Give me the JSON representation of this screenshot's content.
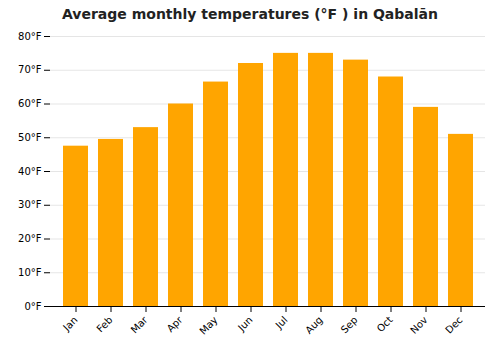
{
  "chart_data": {
    "type": "bar",
    "title": "Average monthly temperatures (°F ) in Qabalān",
    "categories": [
      "Jan",
      "Feb",
      "Mar",
      "Apr",
      "May",
      "Jun",
      "Jul",
      "Aug",
      "Sep",
      "Oct",
      "Nov",
      "Dec"
    ],
    "values": [
      47.5,
      49.5,
      53.0,
      60.0,
      66.5,
      72.0,
      75.0,
      75.0,
      73.0,
      68.0,
      59.0,
      51.0
    ],
    "color": "#FFA500",
    "ylim": [
      0,
      80
    ],
    "yticks": [
      {
        "value": 0,
        "label": "0°F"
      },
      {
        "value": 10,
        "label": "10°F"
      },
      {
        "value": 20,
        "label": "20°F"
      },
      {
        "value": 30,
        "label": "30°F"
      },
      {
        "value": 40,
        "label": "40°F"
      },
      {
        "value": 50,
        "label": "50°F"
      },
      {
        "value": 60,
        "label": "60°F"
      },
      {
        "value": 70,
        "label": "70°F"
      },
      {
        "value": 80,
        "label": "80°F"
      }
    ],
    "grid": true
  }
}
